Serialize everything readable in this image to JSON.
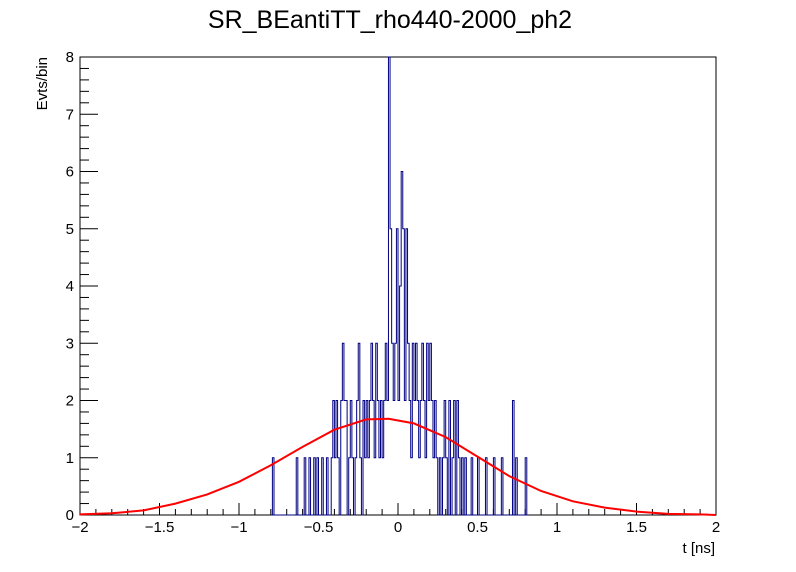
{
  "chart_data": {
    "type": "line",
    "title": "SR_BEantiTT_rho440-2000_ph2",
    "xlabel": "t [ns]",
    "ylabel": "Evts/bin",
    "xlim": [
      -2,
      2
    ],
    "ylim": [
      0,
      8
    ],
    "x_ticks": [
      "−2",
      "−1.5",
      "−1",
      "−0.5",
      "0",
      "0.5",
      "1",
      "1.5",
      "2"
    ],
    "y_ticks": [
      "0",
      "1",
      "2",
      "3",
      "4",
      "5",
      "6",
      "7",
      "8"
    ],
    "grid": false,
    "legend": "none",
    "series": [
      {
        "kind": "histogram",
        "color": "#000080",
        "bin_width": 0.01,
        "bins": [
          [
            -0.79,
            1
          ],
          [
            -0.64,
            1
          ],
          [
            -0.59,
            1
          ],
          [
            -0.56,
            1
          ],
          [
            -0.53,
            1
          ],
          [
            -0.51,
            1
          ],
          [
            -0.48,
            1
          ],
          [
            -0.45,
            1
          ],
          [
            -0.42,
            1
          ],
          [
            -0.41,
            2
          ],
          [
            -0.4,
            1
          ],
          [
            -0.39,
            2
          ],
          [
            -0.38,
            1
          ],
          [
            -0.36,
            2
          ],
          [
            -0.35,
            3
          ],
          [
            -0.34,
            2
          ],
          [
            -0.33,
            2
          ],
          [
            -0.31,
            1
          ],
          [
            -0.3,
            2
          ],
          [
            -0.29,
            1
          ],
          [
            -0.27,
            1
          ],
          [
            -0.26,
            2
          ],
          [
            -0.25,
            3
          ],
          [
            -0.24,
            1
          ],
          [
            -0.22,
            2
          ],
          [
            -0.21,
            1
          ],
          [
            -0.2,
            2
          ],
          [
            -0.19,
            1
          ],
          [
            -0.18,
            2
          ],
          [
            -0.17,
            3
          ],
          [
            -0.16,
            2
          ],
          [
            -0.15,
            1
          ],
          [
            -0.14,
            3
          ],
          [
            -0.13,
            2
          ],
          [
            -0.12,
            1
          ],
          [
            -0.11,
            2
          ],
          [
            -0.1,
            1
          ],
          [
            -0.09,
            2
          ],
          [
            -0.08,
            3
          ],
          [
            -0.07,
            2
          ],
          [
            -0.06,
            8
          ],
          [
            -0.05,
            5
          ],
          [
            -0.04,
            3
          ],
          [
            -0.03,
            2
          ],
          [
            -0.02,
            3
          ],
          [
            -0.01,
            5
          ],
          [
            0.0,
            2
          ],
          [
            0.01,
            4
          ],
          [
            0.02,
            6
          ],
          [
            0.03,
            5
          ],
          [
            0.04,
            2
          ],
          [
            0.05,
            5
          ],
          [
            0.06,
            3
          ],
          [
            0.07,
            2
          ],
          [
            0.08,
            1
          ],
          [
            0.09,
            3
          ],
          [
            0.1,
            2
          ],
          [
            0.11,
            3
          ],
          [
            0.12,
            2
          ],
          [
            0.13,
            1
          ],
          [
            0.14,
            2
          ],
          [
            0.15,
            3
          ],
          [
            0.16,
            2
          ],
          [
            0.17,
            1
          ],
          [
            0.18,
            3
          ],
          [
            0.19,
            2
          ],
          [
            0.2,
            3
          ],
          [
            0.21,
            2
          ],
          [
            0.22,
            1
          ],
          [
            0.23,
            2
          ],
          [
            0.24,
            1
          ],
          [
            0.26,
            1
          ],
          [
            0.28,
            1
          ],
          [
            0.29,
            2
          ],
          [
            0.3,
            1
          ],
          [
            0.32,
            2
          ],
          [
            0.34,
            1
          ],
          [
            0.35,
            2
          ],
          [
            0.37,
            2
          ],
          [
            0.38,
            1
          ],
          [
            0.4,
            1
          ],
          [
            0.42,
            1
          ],
          [
            0.46,
            1
          ],
          [
            0.5,
            1
          ],
          [
            0.55,
            1
          ],
          [
            0.6,
            1
          ],
          [
            0.65,
            1
          ],
          [
            0.72,
            2
          ],
          [
            0.74,
            1
          ],
          [
            0.8,
            1
          ]
        ]
      },
      {
        "kind": "curve",
        "color": "#ff0000",
        "x": [
          -2.0,
          -1.8,
          -1.6,
          -1.4,
          -1.2,
          -1.0,
          -0.8,
          -0.6,
          -0.4,
          -0.2,
          -0.06,
          0.1,
          0.3,
          0.5,
          0.7,
          0.9,
          1.1,
          1.3,
          1.5,
          1.7,
          1.9,
          2.0
        ],
        "y": [
          0.01,
          0.03,
          0.08,
          0.2,
          0.36,
          0.58,
          0.87,
          1.19,
          1.49,
          1.67,
          1.68,
          1.6,
          1.36,
          1.02,
          0.68,
          0.42,
          0.24,
          0.13,
          0.06,
          0.02,
          0.01,
          0.0
        ]
      }
    ]
  }
}
